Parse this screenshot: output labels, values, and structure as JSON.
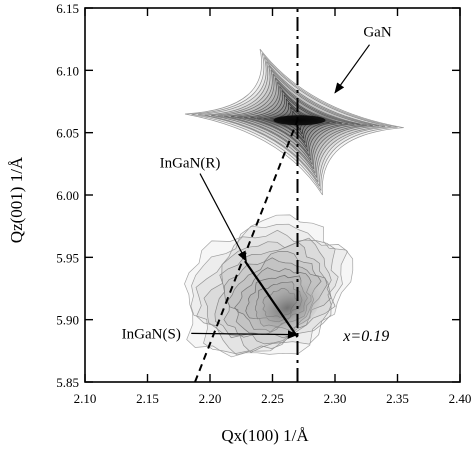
{
  "chart_data": {
    "type": "contour",
    "xlabel": "Qx(100) 1/Å",
    "ylabel": "Qz(001) 1/Å",
    "xlim": [
      2.1,
      2.4
    ],
    "ylim": [
      5.85,
      6.15
    ],
    "x_ticks": [
      "2.10",
      "2.15",
      "2.20",
      "2.25",
      "2.30",
      "2.35",
      "2.40"
    ],
    "y_ticks": [
      "5.85",
      "5.90",
      "5.95",
      "6.00",
      "6.05",
      "6.10",
      "6.15"
    ],
    "grid": false,
    "series": [
      {
        "name": "GaN",
        "kind": "star-contour",
        "peak": [
          2.27,
          6.06
        ],
        "tips": [
          [
            2.24,
            6.117
          ],
          [
            2.355,
            6.054
          ],
          [
            2.29,
            6.0
          ],
          [
            2.18,
            6.065
          ]
        ]
      },
      {
        "name": "InGaN",
        "kind": "blob-contour",
        "center": [
          2.245,
          5.925
        ],
        "radius_x": 0.068,
        "radius_y": 0.052,
        "peak": [
          2.258,
          5.91
        ]
      }
    ],
    "lines": [
      {
        "name": "vertical-dashdot",
        "style": "dash-dot",
        "from": [
          2.27,
          5.85
        ],
        "to": [
          2.27,
          6.15
        ]
      },
      {
        "name": "relaxation-line",
        "style": "dashed",
        "from": [
          2.188,
          5.85
        ],
        "to": [
          2.27,
          6.06
        ]
      },
      {
        "name": "ingan-R-to-S",
        "style": "solid",
        "from": [
          2.228,
          5.947
        ],
        "to": [
          2.27,
          5.886
        ]
      }
    ],
    "annotations": [
      {
        "text": "GaN",
        "at": [
          2.334,
          6.127
        ],
        "arrow_to": [
          2.3,
          6.082
        ]
      },
      {
        "text": "InGaN(R)",
        "at": [
          2.184,
          6.022
        ],
        "arrow_to": [
          2.229,
          5.947
        ]
      },
      {
        "text": "InGaN(S)",
        "at": [
          2.153,
          5.885
        ],
        "arrow_to": [
          2.27,
          5.888
        ]
      },
      {
        "text": "x=0.19",
        "at": [
          2.325,
          5.883
        ]
      }
    ]
  },
  "colors": {
    "axis": "#000000",
    "contour_dark": "#111111",
    "contour_light": "#9a9a9a"
  }
}
